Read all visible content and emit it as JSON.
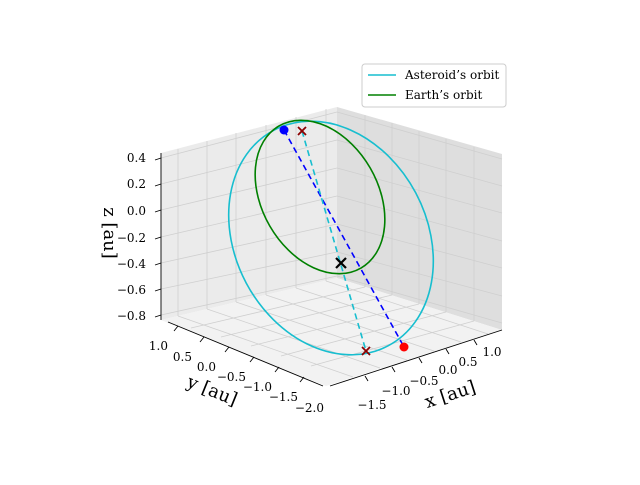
{
  "chart_data": {
    "type": "line",
    "projection": "3d",
    "title": "",
    "axes": {
      "x": {
        "label": "x [au]",
        "ticks": [
          "−1.5",
          "−1.0",
          "−0.5",
          "0.0",
          "0.5",
          "1.0"
        ],
        "range": [
          -1.9,
          1.3
        ]
      },
      "y": {
        "label": "y [au]",
        "ticks": [
          "1.0",
          "0.5",
          "0.0",
          "−0.5",
          "−1.0",
          "−1.5",
          "−2.0"
        ],
        "range": [
          -2.1,
          1.1
        ]
      },
      "z": {
        "label": "z [au]",
        "ticks": [
          "0.4",
          "0.2",
          "0.0",
          "−0.2",
          "−0.4",
          "−0.6",
          "−0.8"
        ],
        "range": [
          -0.85,
          0.45
        ]
      }
    },
    "grid": true,
    "legend": {
      "position": "top-right",
      "entries": [
        {
          "label": "Asteroid’s orbit",
          "color": "#17becf"
        },
        {
          "label": "Earth’s orbit",
          "color": "#008000"
        }
      ]
    },
    "series": [
      {
        "name": "Asteroid’s orbit",
        "kind": "orbit-ellipse",
        "color": "#17becf",
        "center": [
          -0.3,
          -0.45,
          -0.2
        ],
        "semi_axes": [
          1.55,
          0.85
        ],
        "plane_tilt_deg": 28
      },
      {
        "name": "Earth’s orbit",
        "kind": "orbit-ellipse",
        "color": "#008000",
        "center": [
          0.0,
          0.0,
          0.0
        ],
        "semi_axes": [
          1.0,
          1.0
        ],
        "plane_tilt_deg": 0
      }
    ],
    "markers": [
      {
        "role": "asteroid-start",
        "symbol": "circle",
        "color": "#0000ff",
        "x": 0.3,
        "y": 0.95,
        "z": 0.42
      },
      {
        "role": "earth-start",
        "symbol": "x",
        "color": "#8b0000",
        "x": 0.4,
        "y": 0.8,
        "z": 0.42
      },
      {
        "role": "asteroid-end",
        "symbol": "circle",
        "color": "#ff0000",
        "x": -1.05,
        "y": -1.7,
        "z": -0.6
      },
      {
        "role": "earth-end",
        "symbol": "x",
        "color": "#8b0000",
        "x": -1.4,
        "y": -1.4,
        "z": -0.6
      },
      {
        "role": "sun",
        "symbol": "x",
        "color": "#000000",
        "x": 0.0,
        "y": 0.0,
        "z": 0.0
      }
    ],
    "connectors": [
      {
        "style": "dashed",
        "color": "#0000ff",
        "from": "asteroid-start",
        "to": "asteroid-end"
      },
      {
        "style": "dashed",
        "color": "#17becf",
        "from": "earth-start",
        "to": "earth-end"
      }
    ]
  }
}
